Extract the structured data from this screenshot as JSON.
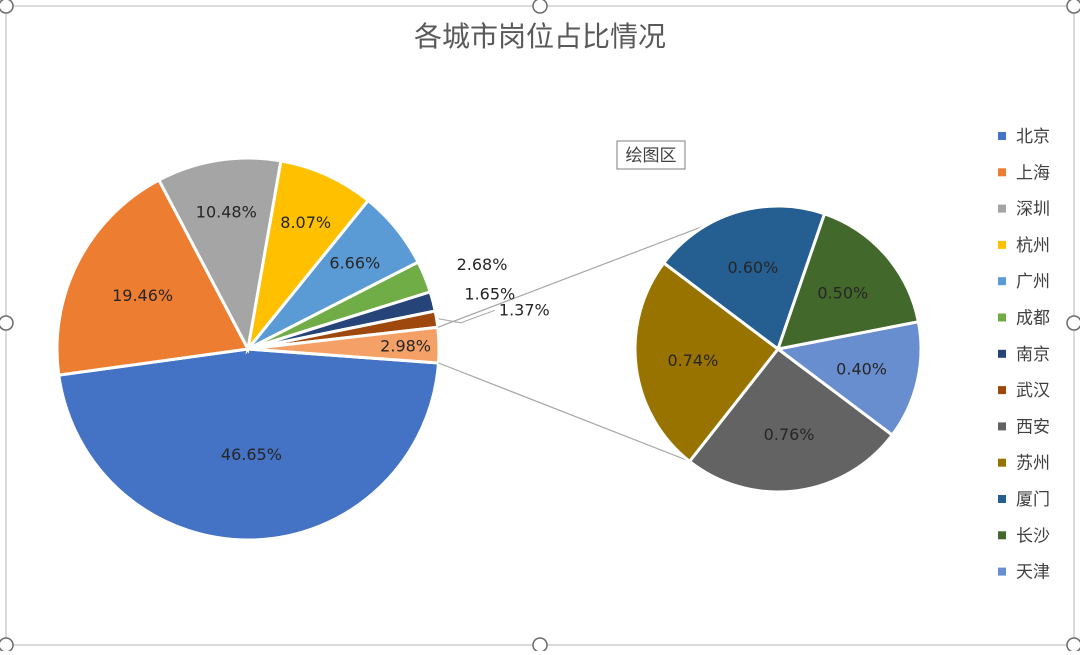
{
  "chart_data": {
    "type": "pie",
    "title": "各城市岗位占比情况",
    "plot_area_tooltip": "绘图区",
    "legend_position": "right",
    "series": [
      {
        "name": "北京",
        "value": 46.65,
        "label": "46.65%",
        "color": "#4472C4"
      },
      {
        "name": "上海",
        "value": 19.46,
        "label": "19.46%",
        "color": "#ED7D31"
      },
      {
        "name": "深圳",
        "value": 10.48,
        "label": "10.48%",
        "color": "#A5A5A5"
      },
      {
        "name": "杭州",
        "value": 8.07,
        "label": "8.07%",
        "color": "#FFC000"
      },
      {
        "name": "广州",
        "value": 6.66,
        "label": "6.66%",
        "color": "#5B9BD5"
      },
      {
        "name": "成都",
        "value": 2.68,
        "label": "2.68%",
        "color": "#70AD47"
      },
      {
        "name": "南京",
        "value": 1.65,
        "label": "1.65%",
        "color": "#264478"
      },
      {
        "name": "武汉",
        "value": 1.37,
        "label": "1.37%",
        "color": "#9E480E"
      },
      {
        "name": "西安",
        "value": 0.76,
        "label": "0.76%",
        "color": "#636363"
      },
      {
        "name": "苏州",
        "value": 0.74,
        "label": "0.74%",
        "color": "#997300"
      },
      {
        "name": "厦门",
        "value": 0.6,
        "label": "0.60%",
        "color": "#255E91"
      },
      {
        "name": "长沙",
        "value": 0.5,
        "label": "0.50%",
        "color": "#43682B"
      },
      {
        "name": "天津",
        "value": 0.4,
        "label": "0.40%",
        "color": "#698ED0"
      }
    ],
    "main_pie_order": [
      "北京",
      "上海",
      "深圳",
      "杭州",
      "广州",
      "成都",
      "南京",
      "武汉"
    ],
    "other_slice": {
      "label": "2.98%",
      "value": 2.98,
      "color": "#F4A066"
    },
    "secondary_pie_order": [
      "天津",
      "西安",
      "苏州",
      "厦门",
      "长沙"
    ]
  }
}
